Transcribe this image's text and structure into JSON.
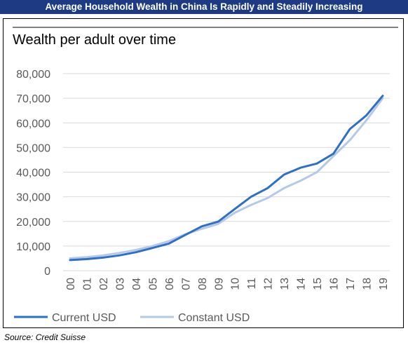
{
  "banner": {
    "title": "Average Household Wealth in China Is Rapidly and Steadily Increasing"
  },
  "source": "Source: Credit Suisse",
  "colors": {
    "banner": "#1d3a83",
    "current": "#2e6fc7",
    "constant": "#b4c9ea",
    "grid": "#d9d9d9",
    "text": "#595959"
  },
  "chart_data": {
    "type": "line",
    "title": "Wealth per adult over time",
    "xlabel": "",
    "ylabel": "",
    "categories": [
      "00",
      "01",
      "02",
      "03",
      "04",
      "05",
      "06",
      "07",
      "08",
      "09",
      "10",
      "11",
      "12",
      "13",
      "14",
      "15",
      "16",
      "17",
      "18",
      "19"
    ],
    "ylim": [
      0,
      80000
    ],
    "yticks": [
      0,
      10000,
      20000,
      30000,
      40000,
      50000,
      60000,
      70000,
      80000
    ],
    "ytick_labels": [
      "0",
      "10,000",
      "20,000",
      "30,000",
      "40,000",
      "50,000",
      "60,000",
      "70,000",
      "80,000"
    ],
    "grid": true,
    "legend_position": "bottom-left",
    "series": [
      {
        "name": "Current USD",
        "color": "#2e6fc7",
        "values": [
          4300,
          4700,
          5300,
          6200,
          7500,
          9200,
          11000,
          14500,
          18000,
          19900,
          25000,
          30000,
          33500,
          39000,
          41800,
          43500,
          47500,
          57500,
          63000,
          71000
        ]
      },
      {
        "name": "Constant USD",
        "color": "#b4c9ea",
        "values": [
          5000,
          5500,
          6200,
          7200,
          8400,
          10000,
          12000,
          14800,
          17000,
          19000,
          23500,
          26700,
          29500,
          33500,
          36500,
          40000,
          46500,
          53000,
          61000,
          70000
        ]
      }
    ]
  }
}
